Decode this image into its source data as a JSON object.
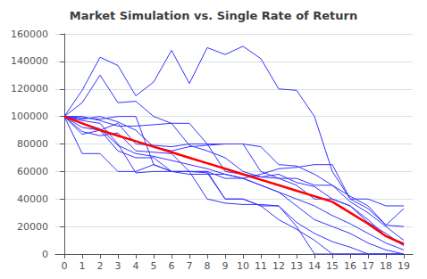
{
  "chart_data": {
    "type": "line",
    "title": "Market Simulation vs. Single Rate of Return",
    "x": [
      0,
      1,
      2,
      3,
      4,
      5,
      6,
      7,
      8,
      9,
      10,
      11,
      12,
      13,
      14,
      15,
      16,
      17,
      18,
      19
    ],
    "xlim": [
      -0.5,
      19.5
    ],
    "xticks": [
      0,
      1,
      2,
      3,
      4,
      5,
      6,
      7,
      8,
      9,
      10,
      11,
      12,
      13,
      14,
      15,
      16,
      17,
      18,
      19
    ],
    "ylim": [
      0,
      160000
    ],
    "yticks": [
      0,
      20000,
      40000,
      60000,
      80000,
      100000,
      120000,
      140000,
      160000
    ],
    "grid": true,
    "series": [
      {
        "color": "#3333FF",
        "values": [
          100000,
          119000,
          143000,
          137000,
          115000,
          125000,
          148000,
          124000,
          150000,
          145000,
          151000,
          142000,
          120000,
          119000,
          100000,
          60000,
          40000,
          33000,
          21000,
          33000
        ]
      },
      {
        "color": "#3333FF",
        "values": [
          100000,
          110000,
          130000,
          110000,
          111000,
          100000,
          95000,
          95000,
          80000,
          80000,
          80000,
          78000,
          65000,
          64000,
          58000,
          50000,
          42000,
          35000,
          21000,
          20000
        ]
      },
      {
        "color": "#3333FF",
        "values": [
          100000,
          99000,
          98000,
          100000,
          100000,
          65000,
          60000,
          60000,
          60000,
          40000,
          40000,
          35000,
          35000,
          20000,
          0,
          0,
          0,
          0,
          0,
          0
        ]
      },
      {
        "color": "#3333FF",
        "values": [
          100000,
          97000,
          95000,
          80000,
          59000,
          60000,
          60000,
          60000,
          59000,
          40000,
          40000,
          35000,
          25000,
          18000,
          10000,
          0,
          0,
          0,
          0,
          0
        ]
      },
      {
        "color": "#3333FF",
        "values": [
          100000,
          95000,
          91000,
          79000,
          73000,
          71000,
          68000,
          65000,
          62000,
          58000,
          55000,
          50000,
          45000,
          40000,
          35000,
          28000,
          22000,
          15000,
          8000,
          3000
        ]
      },
      {
        "color": "#3333FF",
        "values": [
          100000,
          92000,
          90000,
          95000,
          80000,
          79000,
          78000,
          80000,
          80000,
          60000,
          58000,
          56000,
          58000,
          52000,
          49000,
          40000,
          35000,
          25000,
          13000,
          8000
        ]
      },
      {
        "color": "#3333FF",
        "values": [
          100000,
          89000,
          86000,
          88000,
          75000,
          74000,
          73000,
          60000,
          60000,
          55000,
          55000,
          58000,
          62000,
          63000,
          65000,
          65000,
          40000,
          40000,
          35000,
          35000
        ]
      },
      {
        "color": "#3333FF",
        "values": [
          100000,
          87000,
          90000,
          75000,
          70000,
          70000,
          60000,
          60000,
          40000,
          37000,
          36000,
          36000,
          35000,
          23000,
          15000,
          9000,
          5000,
          0,
          0,
          0
        ]
      },
      {
        "color": "#3333FF",
        "values": [
          100000,
          98000,
          100000,
          96000,
          90000,
          78000,
          75000,
          78000,
          79000,
          80000,
          80000,
          60000,
          55000,
          55000,
          50000,
          50000,
          38000,
          30000,
          20000,
          10000
        ]
      },
      {
        "color": "#3333FF",
        "values": [
          100000,
          100000,
          97000,
          93000,
          93000,
          94000,
          95000,
          79000,
          75000,
          70000,
          60000,
          56000,
          55000,
          50000,
          40000,
          40000,
          35000,
          23000,
          15000,
          6000
        ]
      },
      {
        "color": "#3333FF",
        "values": [
          100000,
          73000,
          73000,
          60000,
          60000,
          65000,
          60000,
          58000,
          58000,
          58000,
          55000,
          50000,
          45000,
          35000,
          25000,
          20000,
          15000,
          8000,
          3000,
          0
        ]
      },
      {
        "color": "#FF0000",
        "values": [
          100000,
          95000,
          90000,
          86000,
          82000,
          78000,
          74000,
          70000,
          66000,
          62000,
          58000,
          54000,
          50000,
          46000,
          42000,
          38000,
          30000,
          22000,
          13000,
          7000
        ]
      }
    ]
  }
}
